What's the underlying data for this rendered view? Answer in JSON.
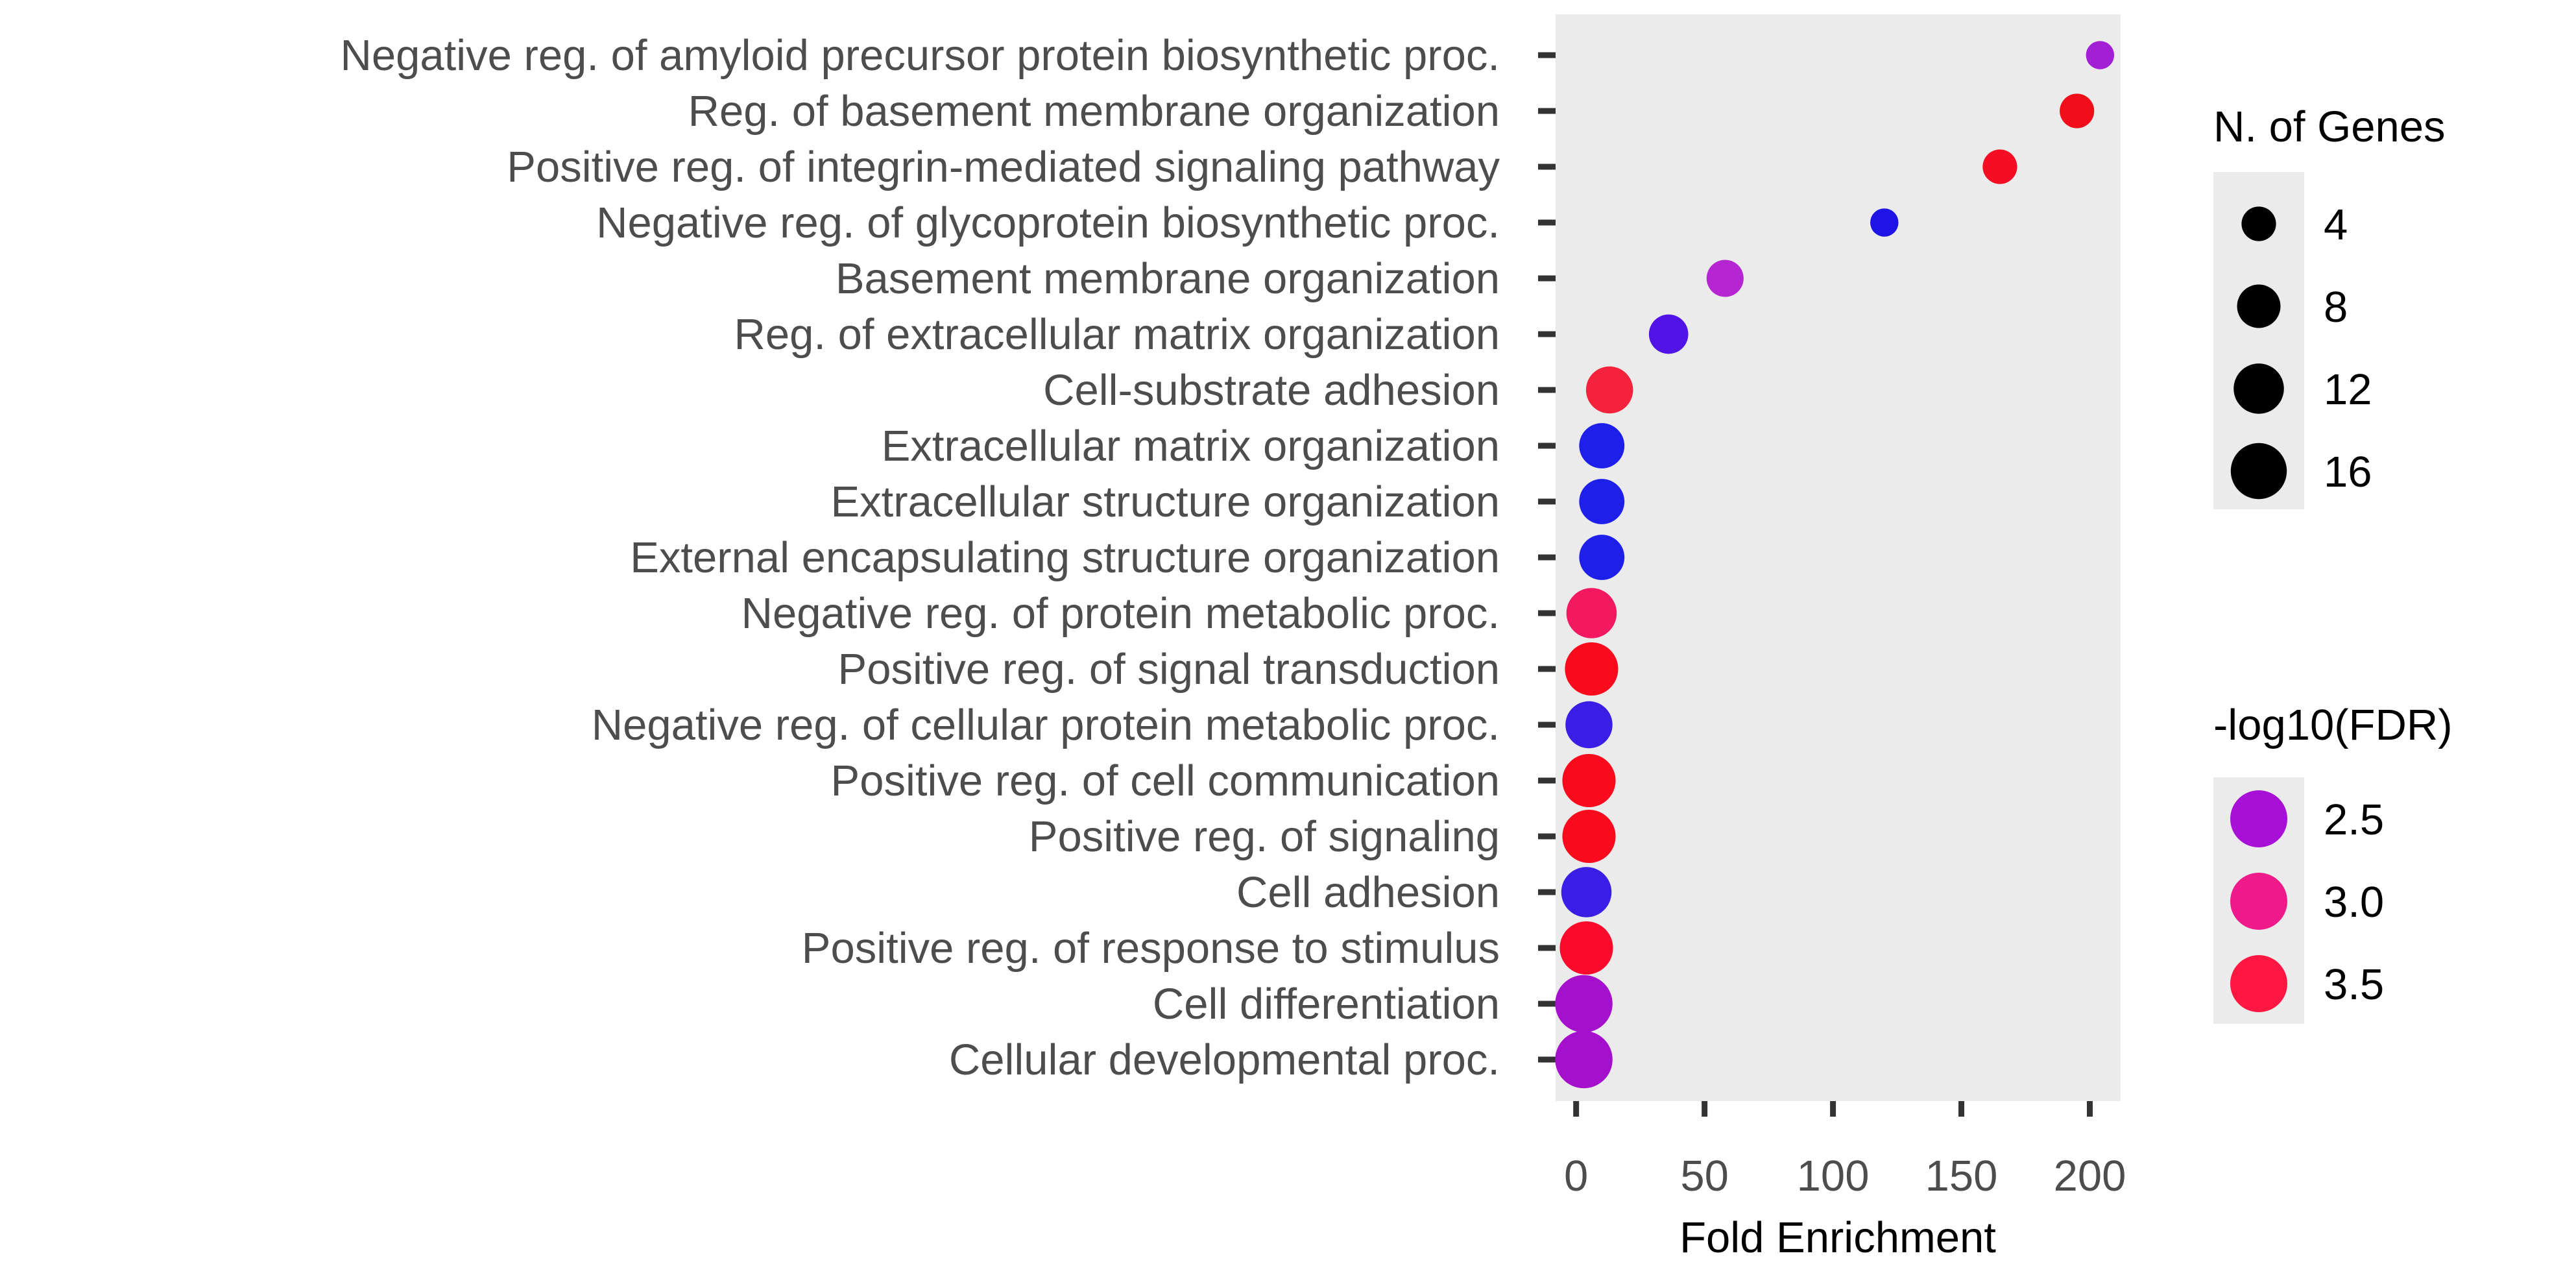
{
  "chart_data": {
    "type": "scatter",
    "xlabel": "Fold Enrichment",
    "ylabel": "",
    "xlim": [
      -8,
      212
    ],
    "x_ticks": [
      0,
      50,
      100,
      150,
      200
    ],
    "x_tick_labels": [
      "0",
      "50",
      "100",
      "150",
      "200"
    ],
    "grid": false,
    "panel_background": "#ebebeb",
    "categories": [
      "Negative reg. of amyloid precursor protein biosynthetic proc.",
      "Reg. of basement membrane organization",
      "Positive reg. of integrin-mediated signaling pathway",
      "Negative reg. of glycoprotein biosynthetic proc.",
      "Basement membrane organization",
      "Reg. of extracellular matrix organization",
      "Cell-substrate adhesion",
      "Extracellular matrix organization",
      "Extracellular structure organization",
      "External encapsulating structure organization",
      "Negative reg. of protein metabolic proc.",
      "Positive reg. of signal transduction",
      "Negative reg. of cellular protein metabolic proc.",
      "Positive reg. of cell communication",
      "Positive reg. of signaling",
      "Cell adhesion",
      "Positive reg. of response to stimulus",
      "Cell differentiation",
      "Cellular developmental proc."
    ],
    "points": [
      {
        "fold_enrichment": 204,
        "n_genes": 2,
        "color": "#a31fd6"
      },
      {
        "fold_enrichment": 195,
        "n_genes": 4,
        "color": "#f20d1a"
      },
      {
        "fold_enrichment": 165,
        "n_genes": 4,
        "color": "#f50d24"
      },
      {
        "fold_enrichment": 120,
        "n_genes": 2,
        "color": "#1f14e6"
      },
      {
        "fold_enrichment": 58,
        "n_genes": 5,
        "color": "#b625d2"
      },
      {
        "fold_enrichment": 36,
        "n_genes": 6,
        "color": "#5214e6"
      },
      {
        "fold_enrichment": 13,
        "n_genes": 10,
        "color": "#f4223a"
      },
      {
        "fold_enrichment": 10,
        "n_genes": 9,
        "color": "#1f1fec"
      },
      {
        "fold_enrichment": 10,
        "n_genes": 9,
        "color": "#1f1fec"
      },
      {
        "fold_enrichment": 10,
        "n_genes": 9,
        "color": "#1f1fec"
      },
      {
        "fold_enrichment": 6,
        "n_genes": 12,
        "color": "#f31860"
      },
      {
        "fold_enrichment": 6,
        "n_genes": 14,
        "color": "#fb0a1e"
      },
      {
        "fold_enrichment": 5,
        "n_genes": 10,
        "color": "#3a1ee6"
      },
      {
        "fold_enrichment": 5,
        "n_genes": 14,
        "color": "#fb0a1e"
      },
      {
        "fold_enrichment": 5,
        "n_genes": 14,
        "color": "#fb0a1e"
      },
      {
        "fold_enrichment": 4,
        "n_genes": 12,
        "color": "#3a1ee6"
      },
      {
        "fold_enrichment": 4,
        "n_genes": 14,
        "color": "#fb0a2c"
      },
      {
        "fold_enrichment": 3,
        "n_genes": 17,
        "color": "#a510cc"
      },
      {
        "fold_enrichment": 3,
        "n_genes": 17,
        "color": "#a510cc"
      }
    ],
    "size_legend": {
      "title": "N. of Genes",
      "values": [
        4,
        8,
        12,
        16
      ],
      "labels": [
        "4",
        "8",
        "12",
        "16"
      ]
    },
    "color_legend": {
      "title": "-log10(FDR)",
      "values": [
        2.5,
        3.0,
        3.5
      ],
      "labels": [
        "2.5",
        "3.0",
        "3.5"
      ],
      "colors": [
        "#a810d8",
        "#ee1a8a",
        "#ff1744"
      ]
    }
  }
}
